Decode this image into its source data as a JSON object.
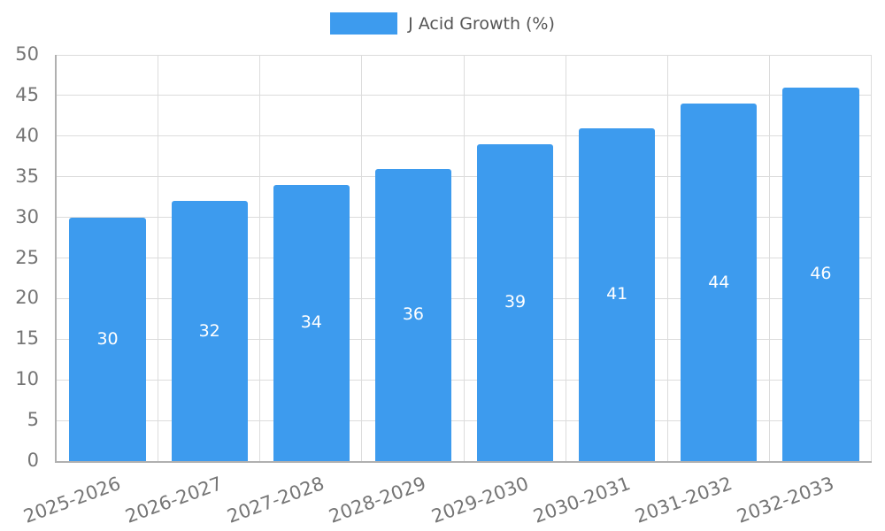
{
  "chart_data": {
    "type": "bar",
    "title": "",
    "legend_position": "top",
    "categories": [
      "2025-2026",
      "2026-2027",
      "2027-2028",
      "2028-2029",
      "2029-2030",
      "2030-2031",
      "2031-2032",
      "2032-2033"
    ],
    "series": [
      {
        "name": "J Acid Growth (%)",
        "values": [
          30,
          32,
          34,
          36,
          39,
          41,
          44,
          46
        ]
      }
    ],
    "data_labels": [
      "30",
      "32",
      "34",
      "36",
      "39",
      "41",
      "44",
      "46"
    ],
    "xlabel": "",
    "ylabel": "",
    "ylim": [
      0,
      50
    ],
    "ytick_step": 5,
    "ytick_labels": [
      "0",
      "5",
      "10",
      "15",
      "20",
      "25",
      "30",
      "35",
      "40",
      "45",
      "50"
    ],
    "grid": true,
    "bar_width_ratio": 0.75,
    "colors": {
      "bar": "#3D9BEE",
      "bar_label": "#ffffff",
      "axis_text": "#757575",
      "grid": "#dcdcdc",
      "axis_line": "#b0b0b0",
      "legend_text": "#555555"
    }
  }
}
